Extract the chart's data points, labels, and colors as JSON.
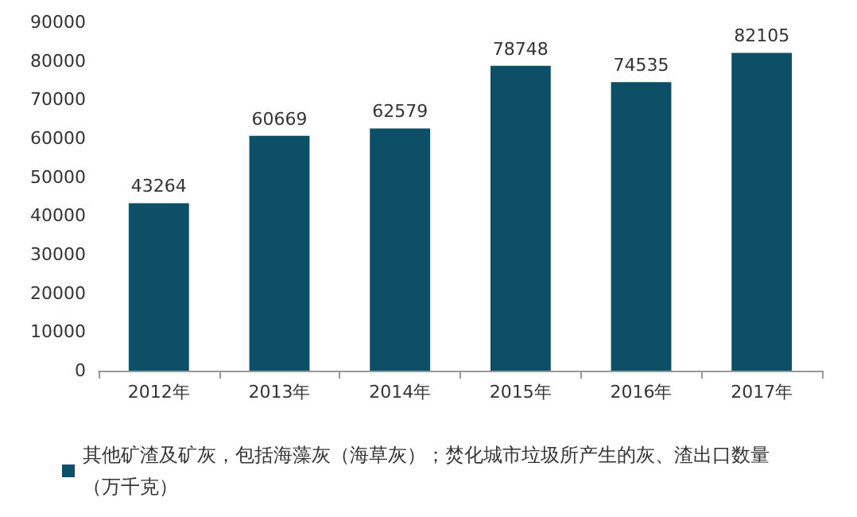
{
  "chart_data": {
    "type": "bar",
    "categories": [
      "2012年",
      "2013年",
      "2014年",
      "2015年",
      "2016年",
      "2017年"
    ],
    "series": [
      {
        "name": "其他矿渣及矿灰，包括海藻灰（海草灰）；焚化城市垃圾所产生的灰、渣出口数量（万千克）",
        "color": "#0d4f66",
        "values": [
          43264,
          60669,
          62579,
          78748,
          74535,
          82105
        ]
      }
    ],
    "ylim": [
      0,
      90000
    ],
    "yticks": [
      0,
      10000,
      20000,
      30000,
      40000,
      50000,
      60000,
      70000,
      80000,
      90000
    ],
    "data_labels": true,
    "legend": "bottom",
    "grid": false
  }
}
